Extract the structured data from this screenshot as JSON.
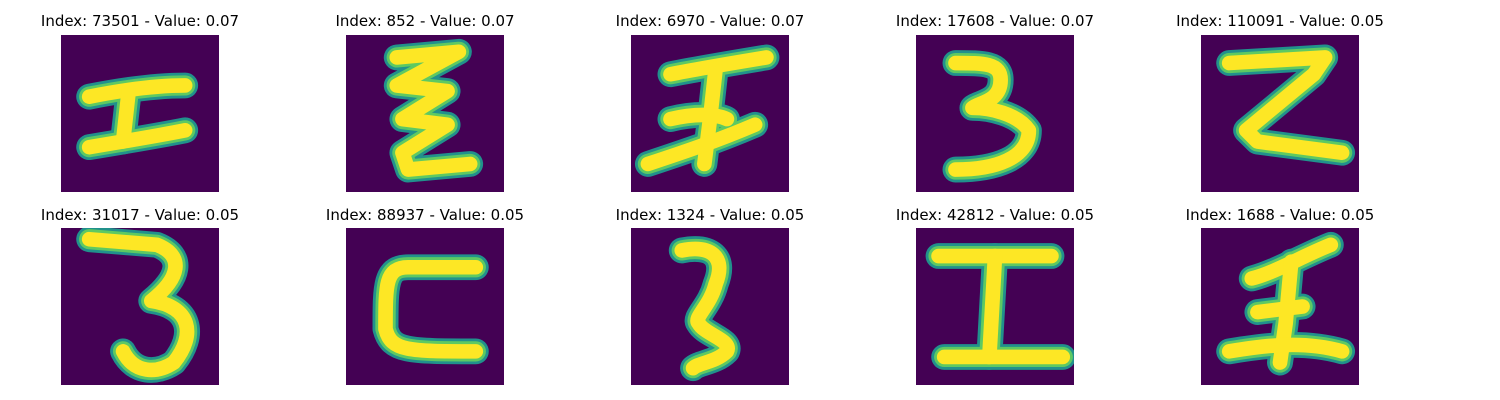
{
  "colors": {
    "background": "#440154",
    "stroke_edge": "#21918c",
    "stroke_mid": "#5ec962",
    "stroke_core": "#fde725"
  },
  "panels": [
    {
      "title": "Index: 73501 - Value: 0.07",
      "glyph": "I-shape"
    },
    {
      "title": "Index: 852 - Value: 0.07",
      "glyph": "zigzag-z"
    },
    {
      "title": "Index: 6970 - Value: 0.07",
      "glyph": "crossed-figure"
    },
    {
      "title": "Index: 17608 - Value: 0.07",
      "glyph": "three"
    },
    {
      "title": "Index: 110091 - Value: 0.05",
      "glyph": "block-z"
    },
    {
      "title": "Index: 31017 - Value: 0.05",
      "glyph": "thin-three"
    },
    {
      "title": "Index: 88937 - Value: 0.05",
      "glyph": "c-shape"
    },
    {
      "title": "Index: 1324 - Value: 0.05",
      "glyph": "curvy-two"
    },
    {
      "title": "Index: 42812 - Value: 0.05",
      "glyph": "capital-i"
    },
    {
      "title": "Index: 1688 - Value: 0.05",
      "glyph": "crossed-one"
    }
  ]
}
